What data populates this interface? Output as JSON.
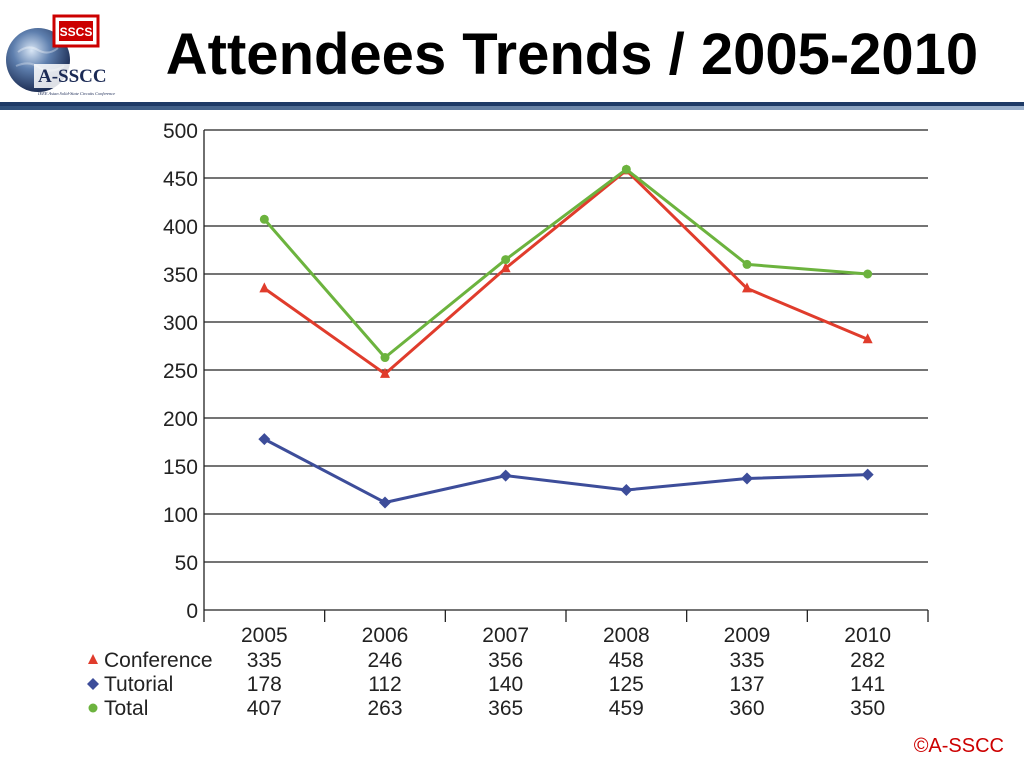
{
  "header": {
    "title": "Attendees Trends / 2005-2010",
    "logo_text": "A-SSCC",
    "logo_badge": "SSCS",
    "logo_subtitle": "IEEE Asian Solid-State Circuits Conference",
    "rule_color_dark": "#2f4f7a",
    "rule_color_light": "#9fb4cf"
  },
  "footer": {
    "copyright": "©A-SSCC"
  },
  "chart_data": {
    "type": "line",
    "title": "",
    "xlabel": "",
    "ylabel": "",
    "categories": [
      "2005",
      "2006",
      "2007",
      "2008",
      "2009",
      "2010"
    ],
    "ylim": [
      0,
      500
    ],
    "yticks": [
      0,
      50,
      100,
      150,
      200,
      250,
      300,
      350,
      400,
      450,
      500
    ],
    "grid": true,
    "legend": "data-table-below-axis",
    "series": [
      {
        "name": "Conference",
        "marker": "triangle",
        "color": "#e03c2c",
        "values": [
          335,
          246,
          356,
          458,
          335,
          282
        ]
      },
      {
        "name": "Tutorial",
        "marker": "diamond",
        "color": "#3d4d9a",
        "values": [
          178,
          112,
          140,
          125,
          137,
          141
        ]
      },
      {
        "name": "Total",
        "marker": "circle",
        "color": "#6cb33e",
        "values": [
          407,
          263,
          365,
          459,
          360,
          350
        ]
      }
    ]
  }
}
